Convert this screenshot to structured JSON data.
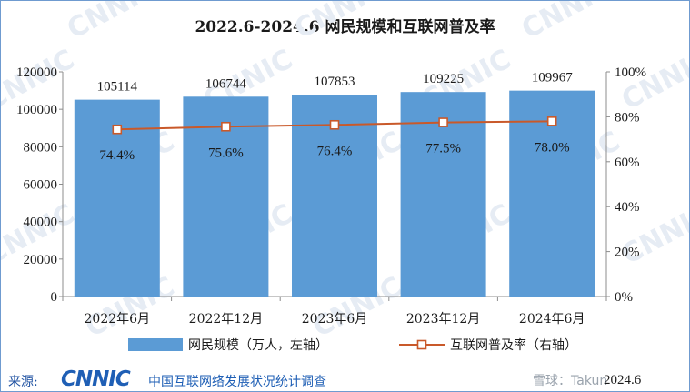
{
  "chart_data": {
    "type": "bar",
    "title": "2022.6-2024.6 网民规模和互联网普及率",
    "categories": [
      "2022年6月",
      "2022年12月",
      "2023年6月",
      "2023年12月",
      "2024年6月"
    ],
    "series": [
      {
        "name": "网民规模（万人，左轴）",
        "type": "bar",
        "axis": "left",
        "values": [
          105114,
          106744,
          107853,
          109225,
          109967
        ],
        "color": "#5b9bd5"
      },
      {
        "name": "互联网普及率（右轴）",
        "type": "line",
        "axis": "right",
        "values": [
          74.4,
          75.6,
          76.4,
          77.5,
          78.0
        ],
        "color": "#c9592a"
      }
    ],
    "point_labels": [
      "74.4%",
      "75.6%",
      "76.4%",
      "77.5%",
      "78.0%"
    ],
    "ylim_left": [
      0,
      120000
    ],
    "yticks_left": [
      "0",
      "20000",
      "40000",
      "60000",
      "80000",
      "100000",
      "120000"
    ],
    "ylim_right": [
      0,
      100
    ],
    "yticks_right": [
      "0%",
      "20%",
      "40%",
      "60%",
      "80%",
      "100%"
    ],
    "grid": false,
    "legend_placement": "bottom"
  },
  "footer": {
    "source_label": "来源:",
    "logo_text": "CNNIC",
    "org_name": "中国互联网络发展状况统计调查",
    "watermark": "雪球：Takun",
    "date": "2024.6"
  },
  "watermark_text": "CNNIC"
}
